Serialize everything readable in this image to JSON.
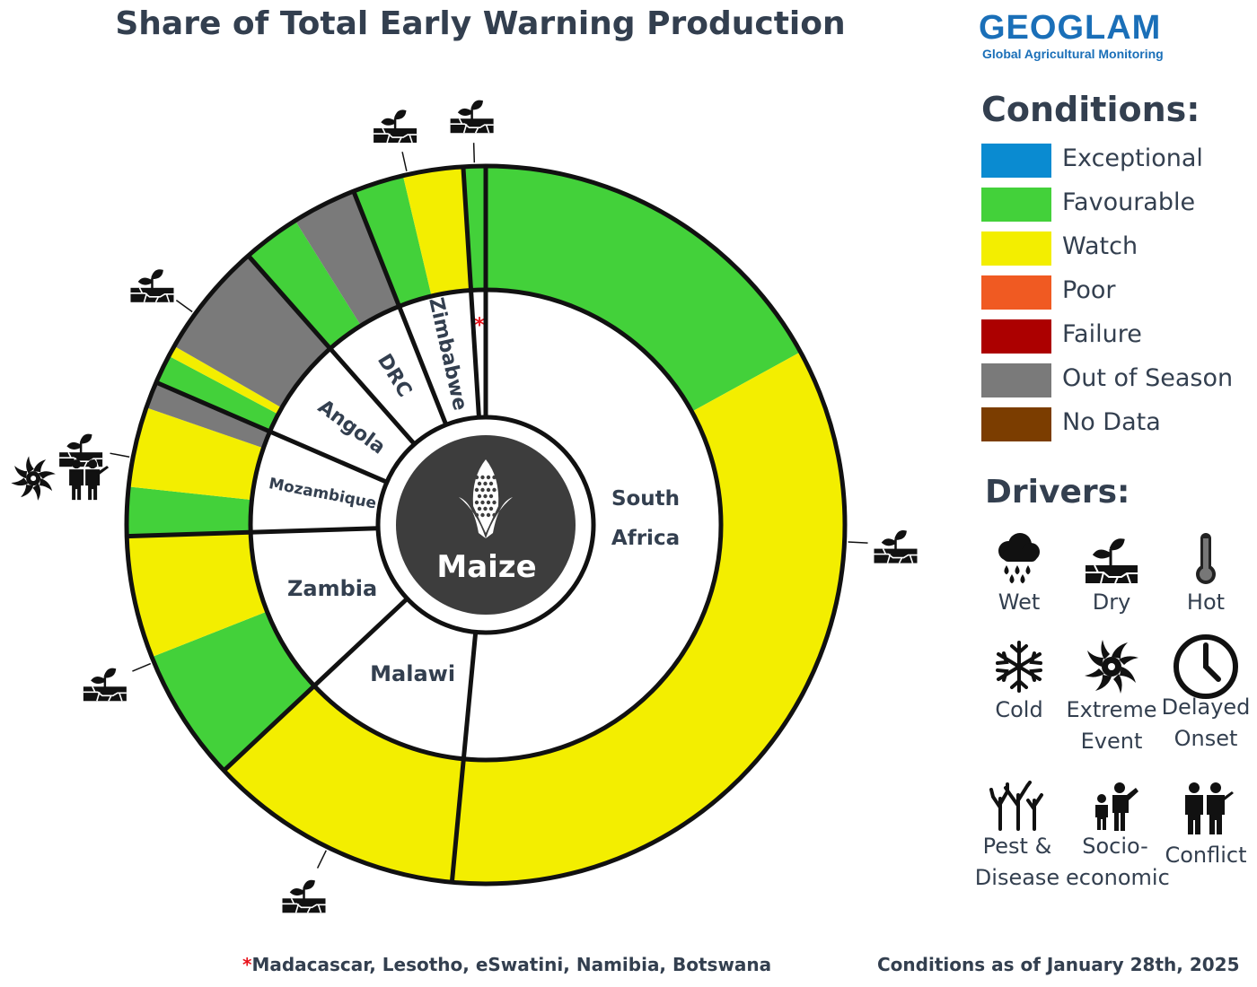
{
  "title": "Share of Total Early Warning Production",
  "logo": {
    "word": "GEOGLAM",
    "tagline": "Global Agricultural Monitoring"
  },
  "legend": {
    "heading": "Conditions:",
    "items": [
      {
        "label": "Exceptional",
        "color": "#0a8bd1"
      },
      {
        "label": "Favourable",
        "color": "#43d13a"
      },
      {
        "label": "Watch",
        "color": "#f3ee00"
      },
      {
        "label": "Poor",
        "color": "#f05a22"
      },
      {
        "label": "Failure",
        "color": "#ac0000"
      },
      {
        "label": "Out of Season",
        "color": "#7a7a7a"
      },
      {
        "label": "No Data",
        "color": "#7b3d00"
      }
    ]
  },
  "drivers": {
    "heading": "Drivers:",
    "items": [
      {
        "icon": "wet-icon",
        "label": "Wet"
      },
      {
        "icon": "dry-icon",
        "label": "Dry"
      },
      {
        "icon": "hot-icon",
        "label": "Hot"
      },
      {
        "icon": "cold-icon",
        "label": "Cold"
      },
      {
        "icon": "extreme-event-icon",
        "label": "Extreme\nEvent"
      },
      {
        "icon": "delayed-onset-icon",
        "label": "Delayed\nOnset"
      },
      {
        "icon": "pest-disease-icon",
        "label": "Pest &\nDisease"
      },
      {
        "icon": "socio-economic-icon",
        "label": "Socio-\neconomic"
      },
      {
        "icon": "conflict-icon",
        "label": "Conflict"
      }
    ]
  },
  "footnote": {
    "star": "*",
    "text": "Madacascar, Lesotho, eSwatini, Namibia, Botswana"
  },
  "as_of": "Conditions as of January 28th, 2025",
  "chart_data": {
    "type": "donut",
    "title": "Share of Total Early Warning Production",
    "center_label": "Maize",
    "unit": "percent of total production",
    "countries": [
      {
        "name": "South Africa",
        "share": 51.5,
        "drivers": [
          "dry"
        ],
        "segments": [
          {
            "condition": "Favourable",
            "share": 17.0
          },
          {
            "condition": "Watch",
            "share": 34.5
          }
        ]
      },
      {
        "name": "Malawi",
        "share": 11.5,
        "drivers": [
          "dry"
        ],
        "segments": [
          {
            "condition": "Watch",
            "share": 11.5
          }
        ]
      },
      {
        "name": "Zambia",
        "share": 11.5,
        "drivers": [
          "dry"
        ],
        "segments": [
          {
            "condition": "Favourable",
            "share": 6.0
          },
          {
            "condition": "Watch",
            "share": 5.5
          }
        ]
      },
      {
        "name": "Mozambique",
        "share": 7.0,
        "drivers": [
          "dry",
          "extreme event",
          "conflict"
        ],
        "segments": [
          {
            "condition": "Favourable",
            "share": 2.2
          },
          {
            "condition": "Watch",
            "share": 3.6
          },
          {
            "condition": "Out of Season",
            "share": 1.2
          }
        ]
      },
      {
        "name": "Angola",
        "share": 7.0,
        "drivers": [
          "dry"
        ],
        "segments": [
          {
            "condition": "Favourable",
            "share": 1.3
          },
          {
            "condition": "Watch",
            "share": 0.5
          },
          {
            "condition": "Out of Season",
            "share": 5.2
          }
        ]
      },
      {
        "name": "DRC",
        "share": 5.5,
        "drivers": [],
        "segments": [
          {
            "condition": "Favourable",
            "share": 2.6
          },
          {
            "condition": "Out of Season",
            "share": 2.9
          }
        ]
      },
      {
        "name": "Zimbabwe",
        "share": 5.0,
        "drivers": [
          "dry"
        ],
        "segments": [
          {
            "condition": "Favourable",
            "share": 2.3
          },
          {
            "condition": "Watch",
            "share": 2.7
          }
        ]
      },
      {
        "name": "*",
        "share": 1.0,
        "drivers": [
          "dry"
        ],
        "segments": [
          {
            "condition": "Favourable",
            "share": 1.0
          }
        ]
      }
    ]
  }
}
